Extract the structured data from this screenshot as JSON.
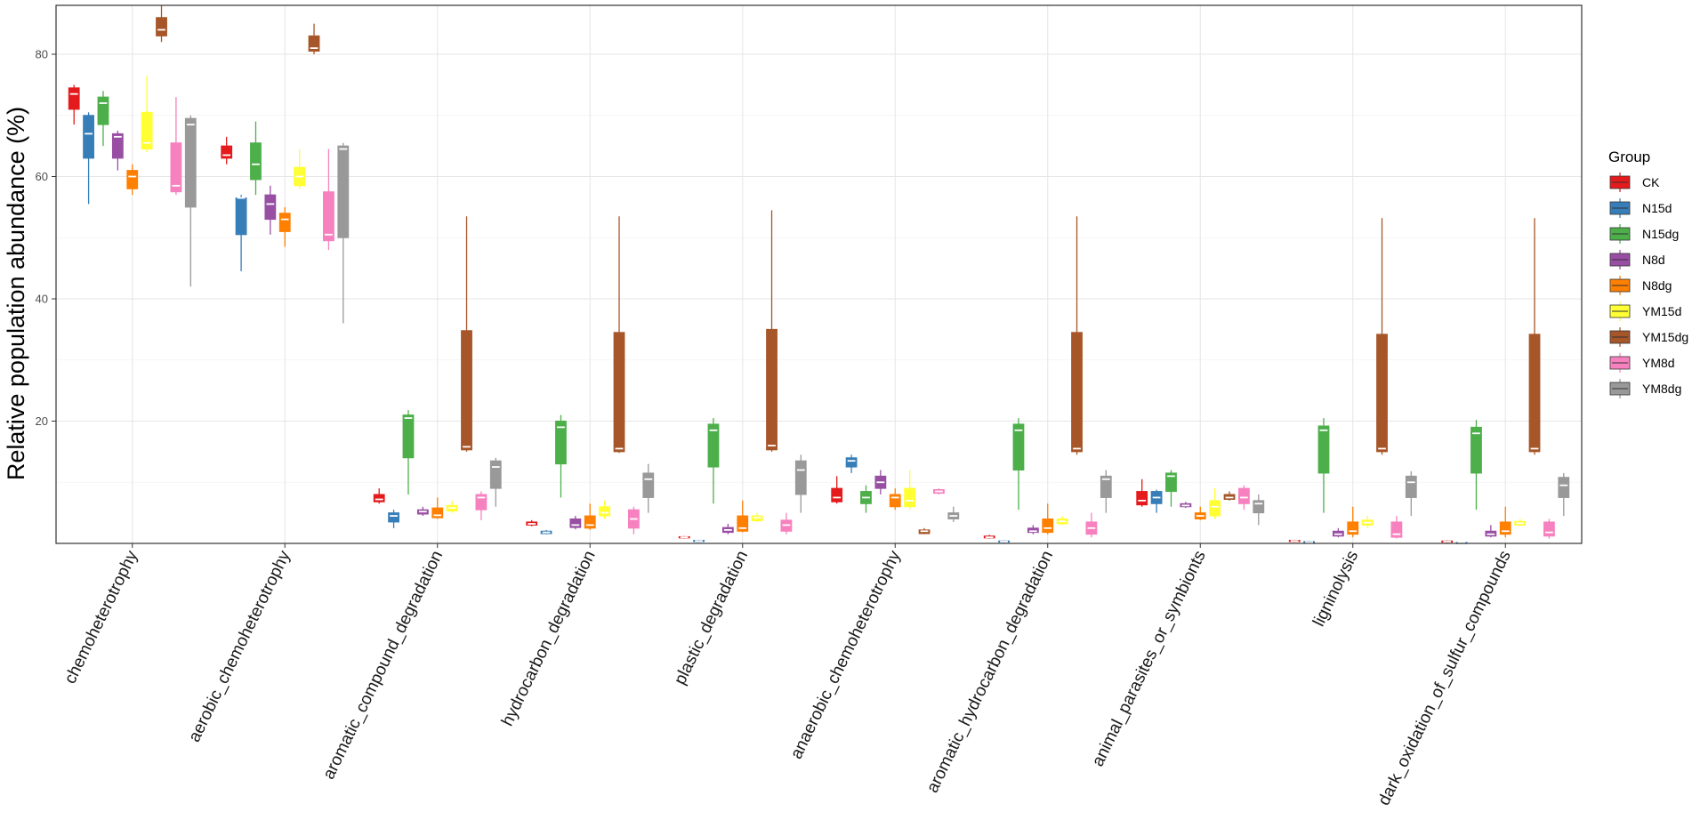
{
  "chart_data": {
    "type": "boxplot",
    "title": "",
    "xlabel": "",
    "ylabel": "Relative population abundance (%)",
    "ylim": [
      0,
      88
    ],
    "yticks": [
      20,
      40,
      60,
      80
    ],
    "grid": true,
    "legend": {
      "title": "Group",
      "position": "right",
      "groups": [
        {
          "name": "CK",
          "color": "#E41A1C"
        },
        {
          "name": "N15d",
          "color": "#377EB8"
        },
        {
          "name": "N15dg",
          "color": "#4DAF4A"
        },
        {
          "name": "N8d",
          "color": "#984EA3"
        },
        {
          "name": "N8dg",
          "color": "#FF7F00"
        },
        {
          "name": "YM15d",
          "color": "#FFFF33"
        },
        {
          "name": "YM15dg",
          "color": "#A65628"
        },
        {
          "name": "YM8d",
          "color": "#F781BF"
        },
        {
          "name": "YM8dg",
          "color": "#999999"
        }
      ]
    },
    "categories": [
      "chemoheterotrophy",
      "aerobic_chemoheterotrophy",
      "aromatic_compound_degradation",
      "hydrocarbon_degradation",
      "plastic_degradation",
      "anaerobic_chemoheterotrophy",
      "aromatic_hydrocarbon_degradation",
      "animal_parasites_or_symbionts",
      "ligninolysis",
      "dark_oxidation_of_sulfur_compounds"
    ],
    "boxes": [
      [
        [
          68.5,
          71,
          73.5,
          74.5,
          75
        ],
        [
          55.5,
          63,
          67,
          70,
          70.5
        ],
        [
          65,
          68.5,
          72,
          73,
          74
        ],
        [
          61,
          63,
          66.5,
          67,
          67.5
        ],
        [
          57,
          58,
          60,
          61,
          62
        ],
        [
          64,
          64.5,
          65.5,
          70.5,
          76.5
        ],
        [
          82,
          83,
          84,
          86,
          88
        ],
        [
          57,
          57.5,
          58.5,
          65.5,
          73
        ],
        [
          42,
          55,
          68.5,
          69.5,
          70
        ]
      ],
      [
        [
          62,
          63,
          63.5,
          65,
          66.5
        ],
        [
          44.5,
          50.5,
          56.5,
          56.5,
          57
        ],
        [
          57,
          59.5,
          62,
          65.5,
          69
        ],
        [
          50.5,
          53,
          55.5,
          57,
          58.5
        ],
        [
          48.5,
          51,
          53,
          54,
          55
        ],
        [
          58,
          58.5,
          60,
          61.5,
          64.5
        ],
        [
          80,
          80.5,
          81,
          83,
          85
        ],
        [
          48,
          49.5,
          50.5,
          57.5,
          64.5
        ],
        [
          36,
          50,
          64.5,
          65,
          65.5
        ]
      ],
      [
        [
          6.5,
          6.8,
          7.2,
          8,
          9
        ],
        [
          2.5,
          3.5,
          4.5,
          5,
          5.5
        ],
        [
          8,
          14,
          20.5,
          21,
          21.8
        ],
        [
          4.5,
          4.8,
          5.2,
          5.5,
          6
        ],
        [
          4,
          4.2,
          4.6,
          5.8,
          7.5
        ],
        [
          5,
          5.3,
          5.8,
          6.2,
          7
        ],
        [
          15,
          15.3,
          15.8,
          34.8,
          53.5
        ],
        [
          3.8,
          5.5,
          7.5,
          8,
          8.5
        ],
        [
          6,
          9,
          12.5,
          13.5,
          14
        ]
      ],
      [
        [
          2.8,
          3,
          3.2,
          3.5,
          3.8
        ],
        [
          1.5,
          1.6,
          1.8,
          2,
          2.2
        ],
        [
          7.5,
          13,
          19,
          20,
          21
        ],
        [
          2.3,
          2.6,
          3,
          4,
          4.5
        ],
        [
          2.2,
          2.5,
          3,
          4.5,
          6.5
        ],
        [
          4,
          4.5,
          5,
          6,
          7
        ],
        [
          14.8,
          15,
          15.5,
          34.5,
          53.5
        ],
        [
          1.5,
          2.5,
          4,
          5.5,
          6
        ],
        [
          5,
          7.5,
          10.5,
          11.5,
          13
        ]
      ],
      [
        [
          0.8,
          0.9,
          1,
          1.1,
          1.2
        ],
        [
          0.2,
          0.3,
          0.4,
          0.5,
          0.6
        ],
        [
          6.5,
          12.5,
          18.5,
          19.5,
          20.5
        ],
        [
          1.5,
          1.8,
          2.2,
          2.6,
          3.2
        ],
        [
          1.8,
          2,
          2.5,
          4.5,
          7
        ],
        [
          3.5,
          3.7,
          4.2,
          4.5,
          5
        ],
        [
          15,
          15.3,
          16,
          35,
          54.5
        ],
        [
          1.5,
          2,
          3,
          3.8,
          5
        ],
        [
          5,
          8,
          12,
          13.5,
          14.5
        ]
      ],
      [
        [
          6.5,
          6.8,
          7.5,
          9,
          11
        ],
        [
          11.5,
          12.5,
          13.5,
          14,
          14.5
        ],
        [
          5,
          6.5,
          7.5,
          8.5,
          9.5
        ],
        [
          8,
          9,
          10,
          11,
          12
        ],
        [
          5.5,
          6,
          7.5,
          8,
          9
        ],
        [
          5.5,
          6,
          7,
          9,
          12
        ],
        [
          1.5,
          1.6,
          2,
          2.2,
          2.5
        ],
        [
          8,
          8.2,
          8.5,
          8.8,
          9
        ],
        [
          3.5,
          4,
          4.5,
          5,
          6
        ]
      ],
      [
        [
          0.8,
          0.9,
          1,
          1.2,
          1.4
        ],
        [
          0.1,
          0.2,
          0.3,
          0.4,
          0.5
        ],
        [
          5.5,
          12,
          18.5,
          19.5,
          20.5
        ],
        [
          1.5,
          1.8,
          2,
          2.5,
          3
        ],
        [
          1.5,
          1.8,
          2.5,
          4,
          6.5
        ],
        [
          3,
          3.2,
          3.6,
          4,
          4.5
        ],
        [
          14.5,
          15,
          15.5,
          34.5,
          53.5
        ],
        [
          1,
          1.5,
          2.5,
          3.5,
          5
        ],
        [
          5,
          7.5,
          10.5,
          11,
          12
        ]
      ],
      [
        [
          6,
          6.3,
          7,
          8.5,
          10.5
        ],
        [
          5,
          6.5,
          7.5,
          8.5,
          8.8
        ],
        [
          6,
          8.5,
          11,
          11.5,
          12
        ],
        [
          5.8,
          6,
          6.2,
          6.5,
          6.8
        ],
        [
          3.8,
          4,
          4.5,
          5,
          6
        ],
        [
          4,
          4.5,
          6,
          7,
          9
        ],
        [
          7,
          7.2,
          7.5,
          8,
          8.5
        ],
        [
          5.5,
          6.5,
          7.5,
          9,
          9.5
        ],
        [
          3,
          5,
          6.5,
          7,
          8
        ]
      ],
      [
        [
          0.2,
          0.3,
          0.4,
          0.5,
          0.6
        ],
        [
          0.05,
          0.1,
          0.2,
          0.3,
          0.4
        ],
        [
          5,
          11.5,
          18.5,
          19.2,
          20.5
        ],
        [
          1,
          1.2,
          1.5,
          2,
          2.5
        ],
        [
          1,
          1.5,
          2,
          3.5,
          6
        ],
        [
          2.5,
          3,
          3.4,
          3.8,
          4.5
        ],
        [
          14.5,
          15,
          15.5,
          34.2,
          53.2
        ],
        [
          0.8,
          1,
          1.5,
          3.5,
          4.5
        ],
        [
          4.5,
          7.5,
          10,
          11,
          11.8
        ]
      ],
      [
        [
          0.1,
          0.2,
          0.3,
          0.4,
          0.5
        ],
        [
          0,
          0.05,
          0.1,
          0.15,
          0.2
        ],
        [
          5.5,
          11.5,
          18,
          19,
          20.2
        ],
        [
          1,
          1.2,
          1.5,
          2,
          3
        ],
        [
          1,
          1.5,
          2,
          3.5,
          6
        ],
        [
          2.8,
          3,
          3.3,
          3.6,
          4
        ],
        [
          14.5,
          15,
          15.5,
          34.2,
          53.2
        ],
        [
          0.8,
          1.2,
          1.8,
          3.5,
          4
        ],
        [
          4.5,
          7.5,
          9.5,
          10.8,
          11.5
        ]
      ]
    ]
  }
}
